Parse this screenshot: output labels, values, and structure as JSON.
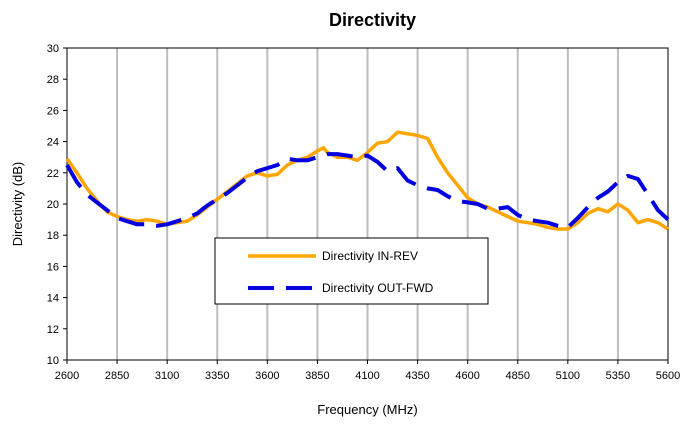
{
  "chart_data": {
    "type": "line",
    "title": "Directivity",
    "xlabel": "Frequency (MHz)",
    "ylabel": "Directivity (dB)",
    "xlim": [
      2600,
      5600
    ],
    "ylim": [
      10,
      30
    ],
    "xticks": [
      2600,
      2850,
      3100,
      3350,
      3600,
      3850,
      4100,
      4350,
      4600,
      4850,
      5100,
      5350,
      5600
    ],
    "yticks": [
      10,
      12,
      14,
      16,
      18,
      20,
      22,
      24,
      26,
      28,
      30
    ],
    "grid": {
      "vertical": true,
      "horizontal": false
    },
    "legend_position": "center",
    "series": [
      {
        "name": "Directivity IN-REV",
        "color": "#FFA500",
        "style": "solid",
        "x": [
          2600,
          2650,
          2700,
          2750,
          2800,
          2850,
          2900,
          2950,
          3000,
          3050,
          3100,
          3150,
          3200,
          3250,
          3300,
          3350,
          3400,
          3450,
          3500,
          3550,
          3600,
          3650,
          3700,
          3750,
          3800,
          3850,
          3880,
          3900,
          3950,
          4000,
          4050,
          4100,
          4150,
          4200,
          4250,
          4300,
          4350,
          4400,
          4450,
          4500,
          4550,
          4600,
          4650,
          4700,
          4750,
          4800,
          4850,
          4900,
          4950,
          5000,
          5050,
          5100,
          5150,
          5200,
          5250,
          5300,
          5350,
          5400,
          5450,
          5500,
          5550,
          5600
        ],
        "values": [
          22.9,
          22.0,
          21.0,
          20.2,
          19.5,
          19.2,
          19.0,
          18.9,
          19.0,
          18.9,
          18.7,
          18.8,
          18.9,
          19.3,
          19.8,
          20.3,
          20.8,
          21.3,
          21.8,
          22.0,
          21.8,
          21.9,
          22.5,
          22.8,
          23.0,
          23.4,
          23.6,
          23.3,
          23.0,
          23.0,
          22.8,
          23.3,
          23.9,
          24.0,
          24.6,
          24.5,
          24.4,
          24.2,
          23.0,
          22.0,
          21.2,
          20.4,
          20.0,
          19.8,
          19.5,
          19.2,
          18.9,
          18.8,
          18.7,
          18.5,
          18.4,
          18.4,
          18.8,
          19.4,
          19.7,
          19.5,
          20.0,
          19.6,
          18.8,
          19.0,
          18.8,
          18.4
        ]
      },
      {
        "name": "Directivity OUT-FWD",
        "color": "#0000E0",
        "style": "dashed",
        "x": [
          2600,
          2650,
          2700,
          2750,
          2800,
          2850,
          2900,
          2950,
          3000,
          3050,
          3100,
          3150,
          3200,
          3250,
          3300,
          3350,
          3400,
          3450,
          3500,
          3550,
          3600,
          3650,
          3700,
          3750,
          3800,
          3850,
          3900,
          3950,
          4000,
          4050,
          4100,
          4150,
          4200,
          4250,
          4300,
          4350,
          4400,
          4450,
          4500,
          4550,
          4600,
          4650,
          4700,
          4750,
          4800,
          4850,
          4900,
          4950,
          5000,
          5050,
          5100,
          5150,
          5200,
          5250,
          5300,
          5350,
          5400,
          5450,
          5500,
          5550,
          5600
        ],
        "values": [
          22.5,
          21.4,
          20.6,
          20.1,
          19.6,
          19.1,
          18.9,
          18.7,
          18.7,
          18.6,
          18.7,
          18.9,
          19.1,
          19.4,
          19.9,
          20.3,
          20.7,
          21.2,
          21.7,
          22.1,
          22.3,
          22.5,
          22.9,
          22.8,
          22.8,
          23.0,
          23.2,
          23.2,
          23.1,
          23.0,
          23.1,
          22.7,
          22.1,
          22.3,
          21.5,
          21.2,
          21.0,
          20.9,
          20.5,
          20.2,
          20.1,
          20.0,
          19.7,
          19.7,
          19.8,
          19.3,
          19.0,
          18.9,
          18.8,
          18.6,
          18.5,
          19.1,
          19.8,
          20.4,
          20.8,
          21.4,
          21.8,
          21.6,
          20.6,
          19.6,
          19.0
        ]
      }
    ]
  }
}
